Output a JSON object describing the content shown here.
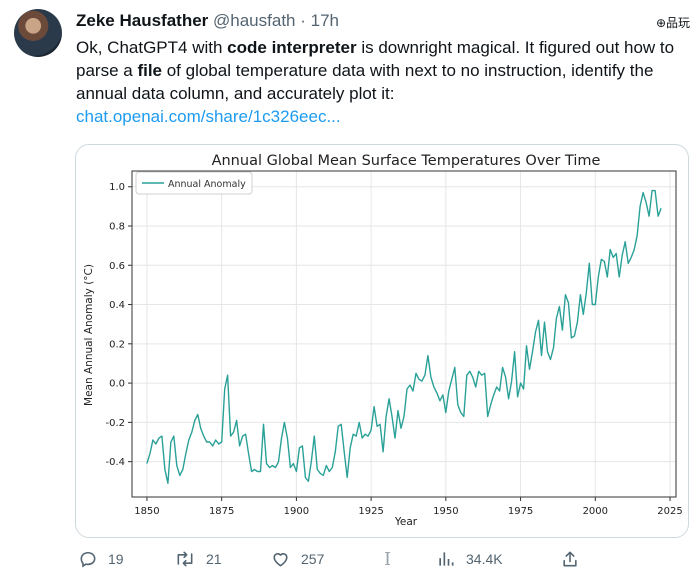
{
  "tweet": {
    "author_name": "Zeke Hausfather",
    "handle": "@hausfath",
    "dot": "·",
    "time": "17h",
    "corner_mark": "⊕品玩",
    "text_1": "Ok, ChatGPT4 with ",
    "text_bold_1": "code interpreter",
    "text_2": " is downright magical. It figured out how to parse a ",
    "text_bold_2": "file",
    "text_3": " of global temperature data with next to no instruction, identify the annual data column, and accurately plot it:",
    "link": "chat.openai.com/share/1c326eec..."
  },
  "actions": {
    "replies": "19",
    "retweets": "21",
    "likes": "257",
    "views": "34.4K"
  },
  "icons": [
    "reply-icon",
    "retweet-icon",
    "like-icon",
    "bookmark-cursor-icon",
    "views-icon",
    "share-icon"
  ],
  "colors": {
    "line": "#2aa198",
    "link": "#1d9bf0",
    "muted": "#536471"
  },
  "chart_data": {
    "type": "line",
    "title": "Annual Global Mean Surface Temperatures Over Time",
    "xlabel": "Year",
    "ylabel": "Mean Annual Anomaly (°C)",
    "xlim": [
      1845,
      2027
    ],
    "ylim": [
      -0.58,
      1.08
    ],
    "xticks": [
      1850,
      1875,
      1900,
      1925,
      1950,
      1975,
      2000,
      2025
    ],
    "yticks": [
      -0.4,
      -0.2,
      0.0,
      0.2,
      0.4,
      0.6,
      0.8,
      1.0
    ],
    "grid": true,
    "legend_position": "upper-left",
    "series": [
      {
        "name": "Annual Anomaly",
        "x": [
          1850,
          1851,
          1852,
          1853,
          1854,
          1855,
          1856,
          1857,
          1858,
          1859,
          1860,
          1861,
          1862,
          1863,
          1864,
          1865,
          1866,
          1867,
          1868,
          1869,
          1870,
          1871,
          1872,
          1873,
          1874,
          1875,
          1876,
          1877,
          1878,
          1879,
          1880,
          1881,
          1882,
          1883,
          1884,
          1885,
          1886,
          1887,
          1888,
          1889,
          1890,
          1891,
          1892,
          1893,
          1894,
          1895,
          1896,
          1897,
          1898,
          1899,
          1900,
          1901,
          1902,
          1903,
          1904,
          1905,
          1906,
          1907,
          1908,
          1909,
          1910,
          1911,
          1912,
          1913,
          1914,
          1915,
          1916,
          1917,
          1918,
          1919,
          1920,
          1921,
          1922,
          1923,
          1924,
          1925,
          1926,
          1927,
          1928,
          1929,
          1930,
          1931,
          1932,
          1933,
          1934,
          1935,
          1936,
          1937,
          1938,
          1939,
          1940,
          1941,
          1942,
          1943,
          1944,
          1945,
          1946,
          1947,
          1948,
          1949,
          1950,
          1951,
          1952,
          1953,
          1954,
          1955,
          1956,
          1957,
          1958,
          1959,
          1960,
          1961,
          1962,
          1963,
          1964,
          1965,
          1966,
          1967,
          1968,
          1969,
          1970,
          1971,
          1972,
          1973,
          1974,
          1975,
          1976,
          1977,
          1978,
          1979,
          1980,
          1981,
          1982,
          1983,
          1984,
          1985,
          1986,
          1987,
          1988,
          1989,
          1990,
          1991,
          1992,
          1993,
          1994,
          1995,
          1996,
          1997,
          1998,
          1999,
          2000,
          2001,
          2002,
          2003,
          2004,
          2005,
          2006,
          2007,
          2008,
          2009,
          2010,
          2011,
          2012,
          2013,
          2014,
          2015,
          2016,
          2017,
          2018,
          2019,
          2020,
          2021,
          2022
        ],
        "values": [
          -0.41,
          -0.36,
          -0.29,
          -0.31,
          -0.28,
          -0.27,
          -0.44,
          -0.51,
          -0.3,
          -0.27,
          -0.42,
          -0.47,
          -0.44,
          -0.36,
          -0.29,
          -0.25,
          -0.19,
          -0.16,
          -0.23,
          -0.27,
          -0.3,
          -0.3,
          -0.32,
          -0.29,
          -0.31,
          -0.3,
          -0.03,
          0.04,
          -0.27,
          -0.25,
          -0.19,
          -0.32,
          -0.27,
          -0.26,
          -0.36,
          -0.45,
          -0.44,
          -0.45,
          -0.45,
          -0.21,
          -0.41,
          -0.43,
          -0.42,
          -0.43,
          -0.4,
          -0.28,
          -0.2,
          -0.28,
          -0.43,
          -0.41,
          -0.45,
          -0.33,
          -0.32,
          -0.48,
          -0.5,
          -0.4,
          -0.27,
          -0.44,
          -0.46,
          -0.47,
          -0.42,
          -0.45,
          -0.43,
          -0.35,
          -0.22,
          -0.21,
          -0.35,
          -0.48,
          -0.33,
          -0.26,
          -0.27,
          -0.2,
          -0.28,
          -0.26,
          -0.27,
          -0.24,
          -0.12,
          -0.22,
          -0.21,
          -0.35,
          -0.17,
          -0.08,
          -0.17,
          -0.28,
          -0.14,
          -0.23,
          -0.17,
          -0.03,
          -0.01,
          -0.04,
          0.05,
          0.02,
          0.01,
          0.04,
          0.14,
          0.03,
          -0.02,
          -0.05,
          -0.09,
          -0.06,
          -0.15,
          -0.04,
          0.02,
          0.08,
          -0.11,
          -0.15,
          -0.17,
          0.04,
          0.06,
          0.03,
          -0.02,
          0.06,
          0.04,
          0.05,
          -0.17,
          -0.11,
          -0.06,
          -0.02,
          -0.04,
          0.08,
          0.03,
          -0.08,
          0.01,
          0.16,
          -0.07,
          0.0,
          -0.03,
          0.19,
          0.07,
          0.16,
          0.26,
          0.32,
          0.14,
          0.31,
          0.16,
          0.12,
          0.18,
          0.33,
          0.39,
          0.27,
          0.45,
          0.41,
          0.23,
          0.24,
          0.31,
          0.45,
          0.35,
          0.46,
          0.61,
          0.4,
          0.4,
          0.54,
          0.63,
          0.62,
          0.54,
          0.68,
          0.64,
          0.66,
          0.54,
          0.65,
          0.72,
          0.61,
          0.64,
          0.68,
          0.75,
          0.9,
          0.97,
          0.92,
          0.85,
          0.98,
          0.98,
          0.85,
          0.89
        ]
      }
    ]
  }
}
